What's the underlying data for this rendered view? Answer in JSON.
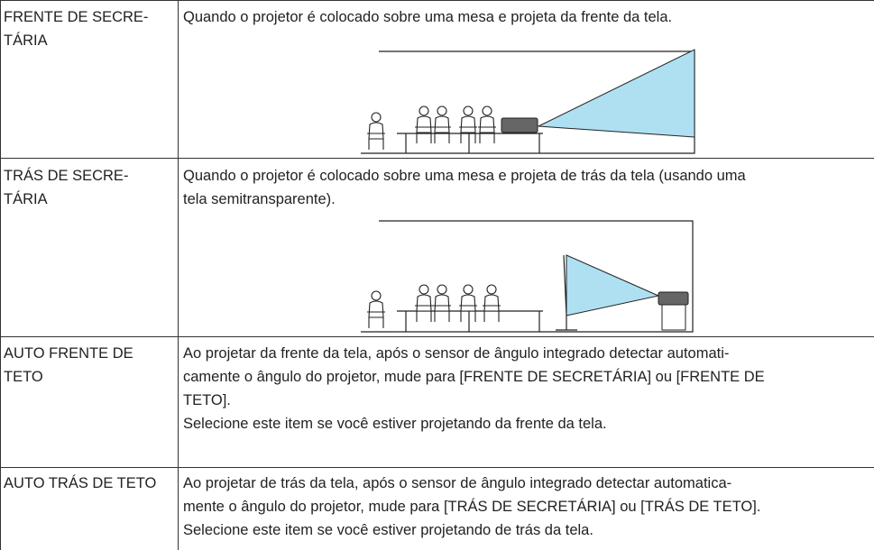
{
  "table": {
    "rows": [
      {
        "label": [
          "FRENTE DE SECRE-",
          "TÁRIA"
        ],
        "description": [
          "Quando o projetor é colocado sobre uma mesa e projeta da frente da tela."
        ]
      },
      {
        "label": [
          "TRÁS DE SECRE-",
          "TÁRIA"
        ],
        "description": [
          "Quando o projetor é colocado sobre uma mesa e projeta de trás da tela (usando uma",
          "tela semitransparente)."
        ]
      },
      {
        "label": [
          "AUTO FRENTE DE",
          "TETO"
        ],
        "description": [
          "Ao projetar da frente da tela, após o sensor de ângulo integrado detectar automati-",
          "camente o ângulo do projetor, mude para [FRENTE DE SECRETÁRIA] ou [FRENTE DE",
          "TETO].",
          "Selecione este item se você estiver projetando da frente da tela."
        ]
      },
      {
        "label": [
          "AUTO TRÁS DE TETO"
        ],
        "description": [
          "Ao projetar de trás da tela, após o sensor de ângulo integrado detectar automatica-",
          "mente o ângulo do projetor, mude para [TRÁS DE SECRETÁRIA] ou [TRÁS DE TETO].",
          "Selecione este item se você estiver projetando de trás da tela."
        ]
      }
    ]
  }
}
